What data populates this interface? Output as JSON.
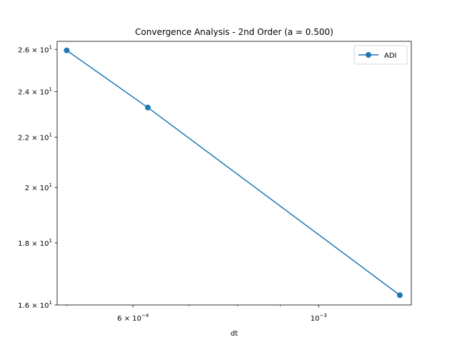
{
  "chart_data": {
    "type": "line",
    "title": "Convergence Analysis - 2nd Order (a = 0.500)",
    "xlabel": "dt",
    "ylabel": "",
    "xscale": "log",
    "yscale": "log",
    "xlim": [
      0.000487,
      0.00129
    ],
    "ylim": [
      16.0,
      26.4
    ],
    "grid": false,
    "legend_position": "upper right",
    "series": [
      {
        "name": "ADI",
        "color": "#1f77b4",
        "marker": "circle",
        "x": [
          0.0005,
          0.000625,
          0.00125
        ],
        "y": [
          25.95,
          23.28,
          16.3
        ]
      }
    ],
    "x_ticks": [
      {
        "value": 0.0006,
        "base": "6 × 10",
        "exp": "−4"
      },
      {
        "value": 0.001,
        "base": "10",
        "exp": "−3"
      }
    ],
    "y_ticks": [
      {
        "value": 16,
        "base": "1.6 × 10",
        "exp": "1"
      },
      {
        "value": 18,
        "base": "1.8 × 10",
        "exp": "1"
      },
      {
        "value": 20,
        "base": "2 × 10",
        "exp": "1"
      },
      {
        "value": 22,
        "base": "2.2 × 10",
        "exp": "1"
      },
      {
        "value": 24,
        "base": "2.4 × 10",
        "exp": "1"
      },
      {
        "value": 26,
        "base": "2.6 × 10",
        "exp": "1"
      }
    ],
    "x_minor_ticks": [
      0.0005,
      0.0007,
      0.0008,
      0.0009
    ]
  }
}
